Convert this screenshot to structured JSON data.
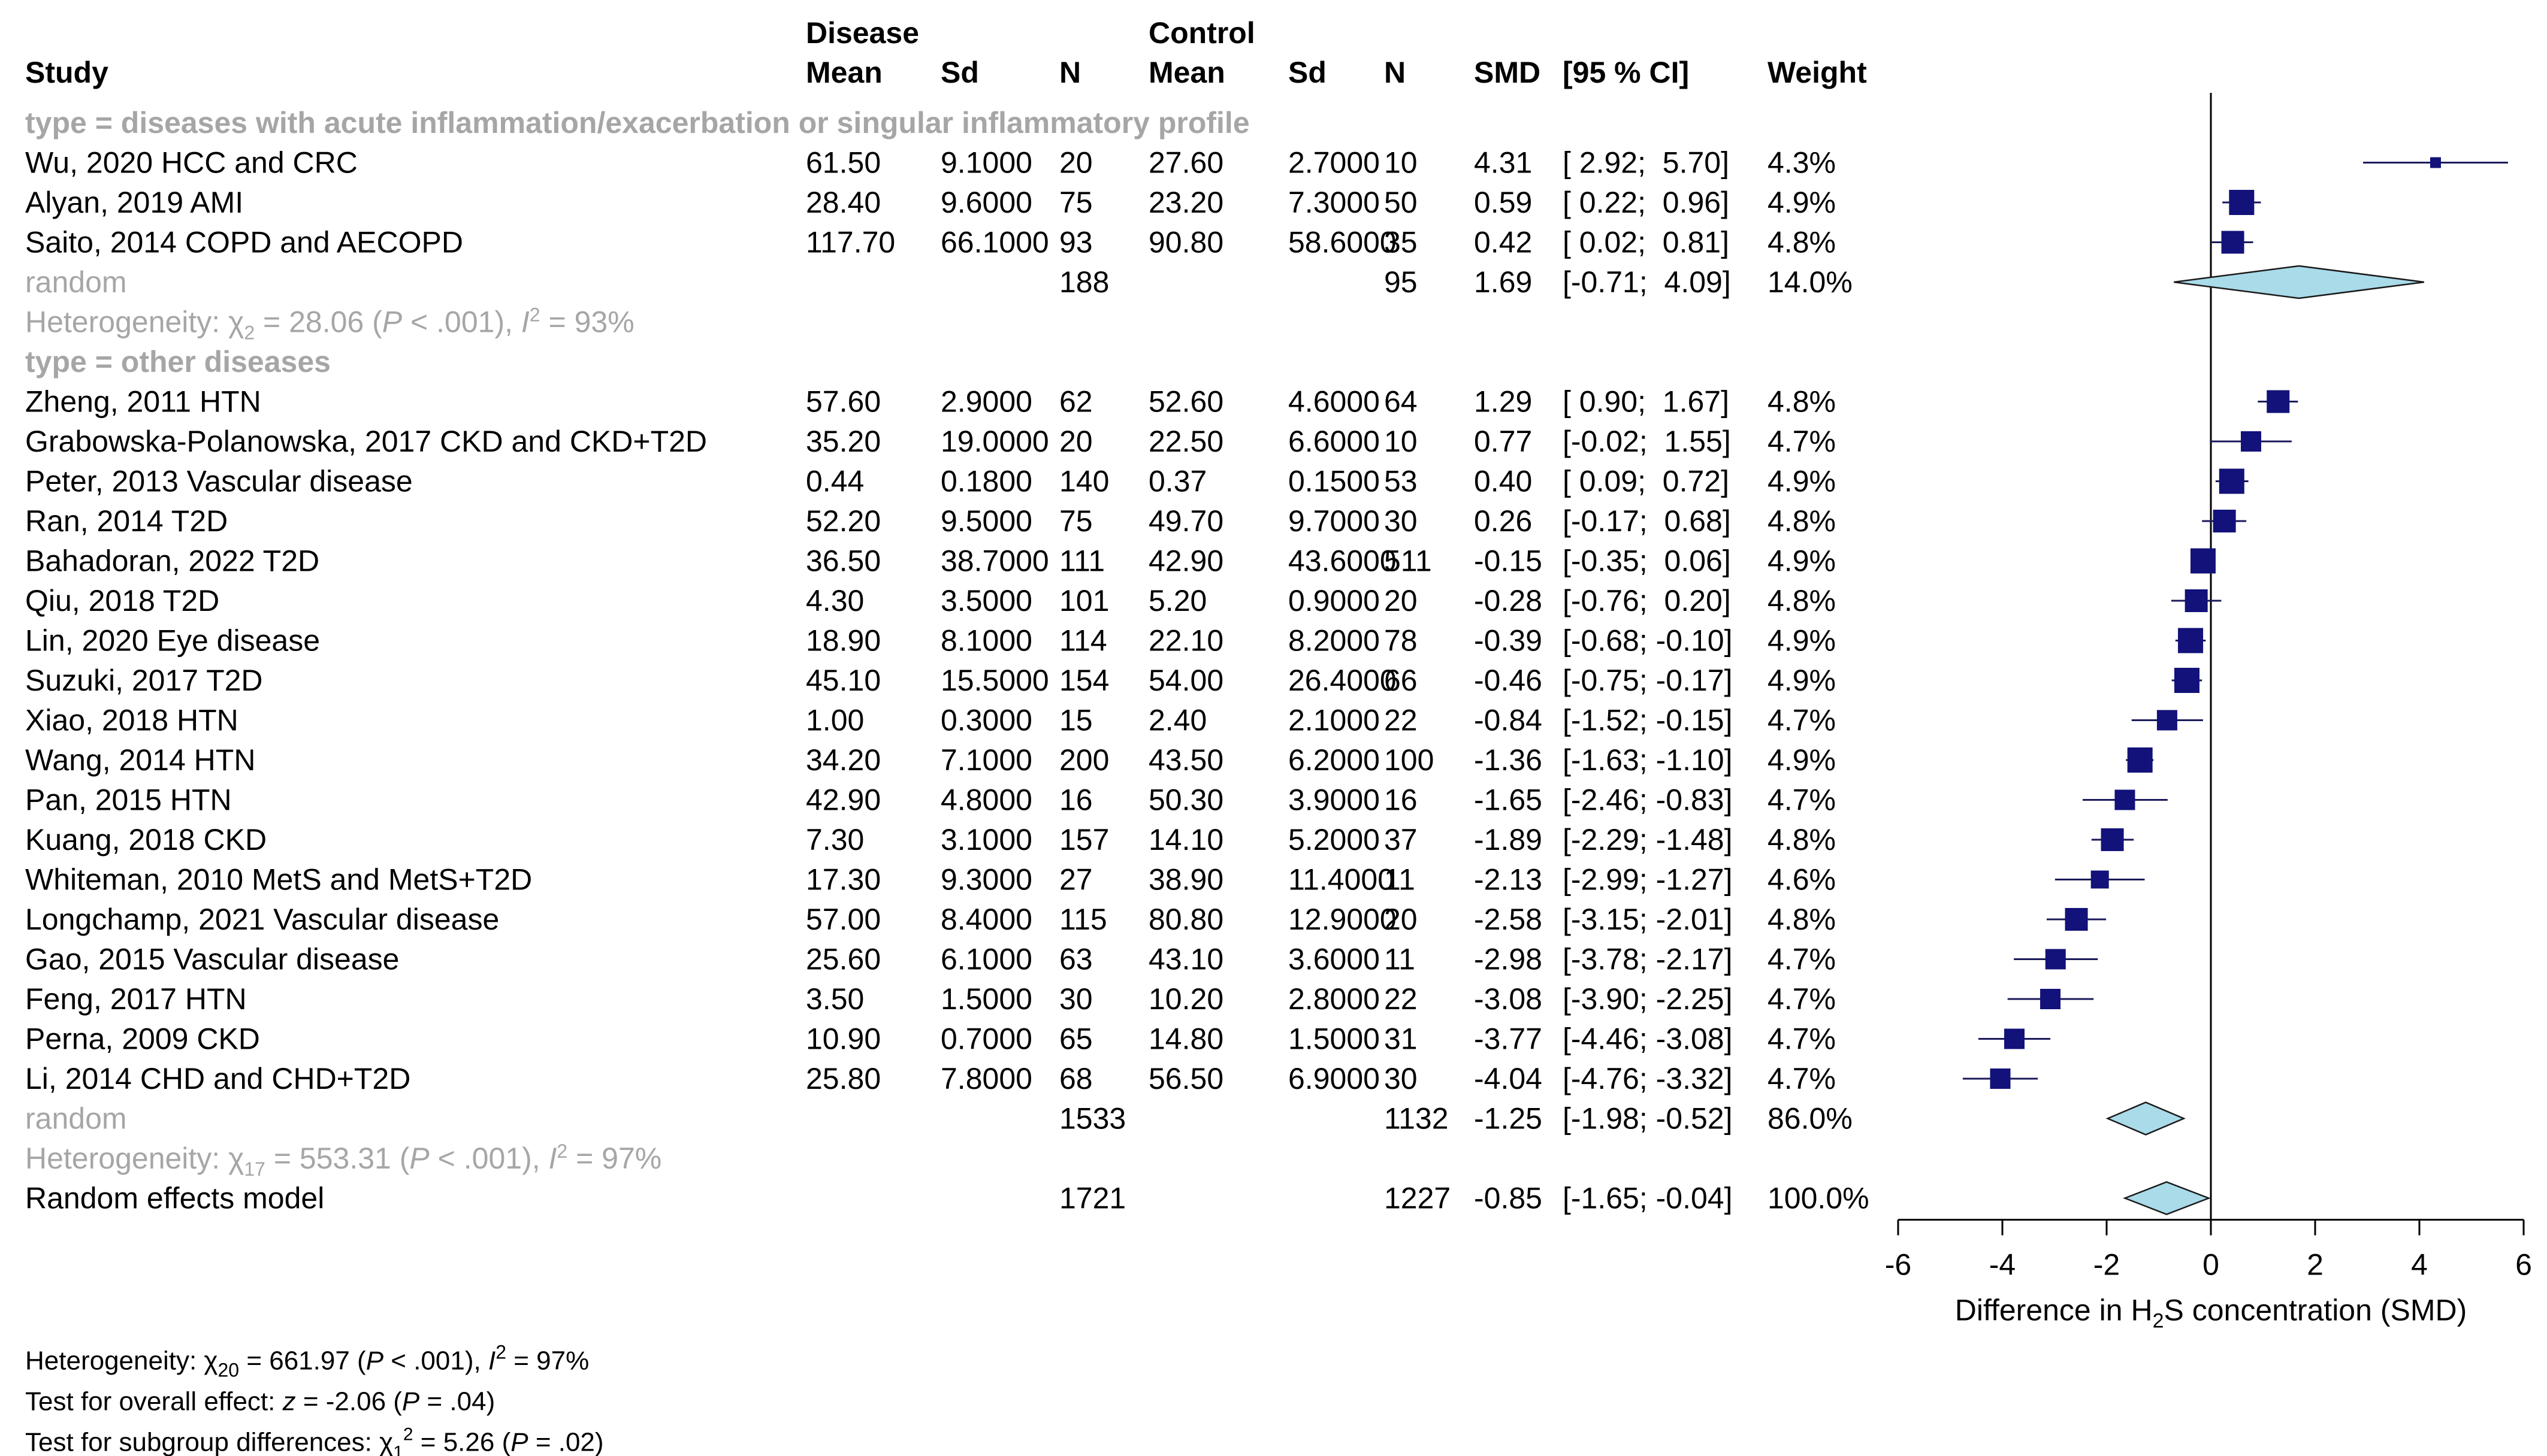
{
  "chart_data": {
    "type": "forest",
    "title": "",
    "xlabel_pre": "Difference in H",
    "xlabel_sub": "2",
    "xlabel_post": "S concentration (SMD)",
    "xlim": [
      -6,
      6
    ],
    "xticks": [
      -6,
      -4,
      -2,
      0,
      2,
      4,
      6
    ],
    "tick_labels": [
      "-6",
      "-4",
      "-2",
      "0",
      "2",
      "4",
      "6"
    ],
    "colors": {
      "marker": "#12127a",
      "diamond": "#a9dbe9",
      "grey": "#a6a6a6",
      "axis": "#000000"
    },
    "headers": {
      "disease_group": "Disease",
      "control_group": "Control",
      "study": "Study",
      "mean": "Mean",
      "sd": "Sd",
      "n": "N",
      "smd": "SMD",
      "ci": "[95 % CI]",
      "weight": "Weight"
    },
    "subgroups": [
      {
        "title": "type = diseases with acute inflammation/exacerbation or singular inflammatory profile",
        "studies": [
          {
            "study": "Wu, 2020  HCC and CRC",
            "d_mean": "61.50",
            "d_sd": "9.1000",
            "d_n": "20",
            "c_mean": "27.60",
            "c_sd": "2.7000",
            "c_n": "10",
            "smd_text": "4.31",
            "ci_text": "[ 2.92;  5.70]",
            "weight_text": "4.3%",
            "smd": 4.31,
            "lo": 2.92,
            "hi": 5.7,
            "weight": 4.3
          },
          {
            "study": "Alyan, 2019 AMI",
            "d_mean": "28.40",
            "d_sd": "9.6000",
            "d_n": "75",
            "c_mean": "23.20",
            "c_sd": "7.3000",
            "c_n": "50",
            "smd_text": "0.59",
            "ci_text": "[ 0.22;  0.96]",
            "weight_text": "4.9%",
            "smd": 0.59,
            "lo": 0.22,
            "hi": 0.96,
            "weight": 4.9
          },
          {
            "study": "Saito, 2014  COPD and AECOPD",
            "d_mean": "117.70",
            "d_sd": "66.1000",
            "d_n": "93",
            "c_mean": "90.80",
            "c_sd": "58.6000",
            "c_n": "35",
            "smd_text": "0.42",
            "ci_text": "[ 0.02;  0.81]",
            "weight_text": "4.8%",
            "smd": 0.42,
            "lo": 0.02,
            "hi": 0.81,
            "weight": 4.8
          }
        ],
        "pooled": {
          "label": "random",
          "d_n": "188",
          "c_n": "95",
          "smd_text": "1.69",
          "ci_text": "[-0.71;  4.09]",
          "weight_text": "14.0%",
          "smd": 1.69,
          "lo": -0.71,
          "hi": 4.09
        },
        "het": {
          "pre": "Heterogeneity: χ",
          "sub": "2",
          "mid": " = 28.06 (",
          "p": "P",
          "pval": " < .001), ",
          "i": "I",
          "isup": "2",
          "post": " = 93%"
        }
      },
      {
        "title": "type = other diseases",
        "studies": [
          {
            "study": "Zheng, 2011 HTN",
            "d_mean": "57.60",
            "d_sd": "2.9000",
            "d_n": "62",
            "c_mean": "52.60",
            "c_sd": "4.6000",
            "c_n": "64",
            "smd_text": "1.29",
            "ci_text": "[ 0.90;  1.67]",
            "weight_text": "4.8%",
            "smd": 1.29,
            "lo": 0.9,
            "hi": 1.67,
            "weight": 4.8
          },
          {
            "study": "Grabowska-Polanowska, 2017  CKD and CKD+T2D",
            "d_mean": "35.20",
            "d_sd": "19.0000",
            "d_n": "20",
            "c_mean": "22.50",
            "c_sd": "6.6000",
            "c_n": "10",
            "smd_text": "0.77",
            "ci_text": "[-0.02;  1.55]",
            "weight_text": "4.7%",
            "smd": 0.77,
            "lo": -0.02,
            "hi": 1.55,
            "weight": 4.7
          },
          {
            "study": "Peter, 2013   Vascular disease",
            "d_mean": "0.44",
            "d_sd": "0.1800",
            "d_n": "140",
            "c_mean": "0.37",
            "c_sd": "0.1500",
            "c_n": "53",
            "smd_text": "0.40",
            "ci_text": "[ 0.09;  0.72]",
            "weight_text": "4.9%",
            "smd": 0.4,
            "lo": 0.09,
            "hi": 0.72,
            "weight": 4.9
          },
          {
            "study": "Ran, 2014  T2D",
            "d_mean": "52.20",
            "d_sd": "9.5000",
            "d_n": "75",
            "c_mean": "49.70",
            "c_sd": "9.7000",
            "c_n": "30",
            "smd_text": "0.26",
            "ci_text": "[-0.17;  0.68]",
            "weight_text": "4.8%",
            "smd": 0.26,
            "lo": -0.17,
            "hi": 0.68,
            "weight": 4.8
          },
          {
            "study": "Bahadoran, 2022 T2D",
            "d_mean": "36.50",
            "d_sd": "38.7000",
            "d_n": "111",
            "c_mean": "42.90",
            "c_sd": "43.6000",
            "c_n": "511",
            "smd_text": "-0.15",
            "ci_text": "[-0.35;  0.06]",
            "weight_text": "4.9%",
            "smd": -0.15,
            "lo": -0.35,
            "hi": 0.06,
            "weight": 4.9
          },
          {
            "study": "Qiu, 2018 T2D",
            "d_mean": "4.30",
            "d_sd": "3.5000",
            "d_n": "101",
            "c_mean": "5.20",
            "c_sd": "0.9000",
            "c_n": "20",
            "smd_text": "-0.28",
            "ci_text": "[-0.76;  0.20]",
            "weight_text": "4.8%",
            "smd": -0.28,
            "lo": -0.76,
            "hi": 0.2,
            "weight": 4.8
          },
          {
            "study": "Lin, 2020 Eye disease",
            "d_mean": "18.90",
            "d_sd": "8.1000",
            "d_n": "114",
            "c_mean": "22.10",
            "c_sd": "8.2000",
            "c_n": "78",
            "smd_text": "-0.39",
            "ci_text": "[-0.68; -0.10]",
            "weight_text": "4.9%",
            "smd": -0.39,
            "lo": -0.68,
            "hi": -0.1,
            "weight": 4.9
          },
          {
            "study": "Suzuki, 2017 T2D",
            "d_mean": "45.10",
            "d_sd": "15.5000",
            "d_n": "154",
            "c_mean": "54.00",
            "c_sd": "26.4000",
            "c_n": "66",
            "smd_text": "-0.46",
            "ci_text": "[-0.75; -0.17]",
            "weight_text": "4.9%",
            "smd": -0.46,
            "lo": -0.75,
            "hi": -0.17,
            "weight": 4.9
          },
          {
            "study": "Xiao, 2018 HTN",
            "d_mean": "1.00",
            "d_sd": "0.3000",
            "d_n": "15",
            "c_mean": "2.40",
            "c_sd": "2.1000",
            "c_n": "22",
            "smd_text": "-0.84",
            "ci_text": "[-1.52; -0.15]",
            "weight_text": "4.7%",
            "smd": -0.84,
            "lo": -1.52,
            "hi": -0.15,
            "weight": 4.7
          },
          {
            "study": "Wang, 2014  HTN",
            "d_mean": "34.20",
            "d_sd": "7.1000",
            "d_n": "200",
            "c_mean": "43.50",
            "c_sd": "6.2000",
            "c_n": "100",
            "smd_text": "-1.36",
            "ci_text": "[-1.63; -1.10]",
            "weight_text": "4.9%",
            "smd": -1.36,
            "lo": -1.63,
            "hi": -1.1,
            "weight": 4.9
          },
          {
            "study": "Pan, 2015  HTN",
            "d_mean": "42.90",
            "d_sd": "4.8000",
            "d_n": "16",
            "c_mean": "50.30",
            "c_sd": "3.9000",
            "c_n": "16",
            "smd_text": "-1.65",
            "ci_text": "[-2.46; -0.83]",
            "weight_text": "4.7%",
            "smd": -1.65,
            "lo": -2.46,
            "hi": -0.83,
            "weight": 4.7
          },
          {
            "study": "Kuang, 2018 CKD",
            "d_mean": "7.30",
            "d_sd": "3.1000",
            "d_n": "157",
            "c_mean": "14.10",
            "c_sd": "5.2000",
            "c_n": "37",
            "smd_text": "-1.89",
            "ci_text": "[-2.29; -1.48]",
            "weight_text": "4.8%",
            "smd": -1.89,
            "lo": -2.29,
            "hi": -1.48,
            "weight": 4.8
          },
          {
            "study": "Whiteman, 2010 MetS and MetS+T2D",
            "d_mean": "17.30",
            "d_sd": "9.3000",
            "d_n": "27",
            "c_mean": "38.90",
            "c_sd": "11.4000",
            "c_n": "11",
            "smd_text": "-2.13",
            "ci_text": "[-2.99; -1.27]",
            "weight_text": "4.6%",
            "smd": -2.13,
            "lo": -2.99,
            "hi": -1.27,
            "weight": 4.6
          },
          {
            "study": "Longchamp, 2021  Vascular disease",
            "d_mean": "57.00",
            "d_sd": "8.4000",
            "d_n": "115",
            "c_mean": "80.80",
            "c_sd": "12.9000",
            "c_n": "20",
            "smd_text": "-2.58",
            "ci_text": "[-3.15; -2.01]",
            "weight_text": "4.8%",
            "smd": -2.58,
            "lo": -3.15,
            "hi": -2.01,
            "weight": 4.8
          },
          {
            "study": "Gao, 2015 Vascular disease",
            "d_mean": "25.60",
            "d_sd": "6.1000",
            "d_n": "63",
            "c_mean": "43.10",
            "c_sd": "3.6000",
            "c_n": "11",
            "smd_text": "-2.98",
            "ci_text": "[-3.78; -2.17]",
            "weight_text": "4.7%",
            "smd": -2.98,
            "lo": -3.78,
            "hi": -2.17,
            "weight": 4.7
          },
          {
            "study": "Feng, 2017 HTN",
            "d_mean": "3.50",
            "d_sd": "1.5000",
            "d_n": "30",
            "c_mean": "10.20",
            "c_sd": "2.8000",
            "c_n": "22",
            "smd_text": "-3.08",
            "ci_text": "[-3.90; -2.25]",
            "weight_text": "4.7%",
            "smd": -3.08,
            "lo": -3.9,
            "hi": -2.25,
            "weight": 4.7
          },
          {
            "study": "Perna, 2009  CKD",
            "d_mean": "10.90",
            "d_sd": "0.7000",
            "d_n": "65",
            "c_mean": "14.80",
            "c_sd": "1.5000",
            "c_n": "31",
            "smd_text": "-3.77",
            "ci_text": "[-4.46; -3.08]",
            "weight_text": "4.7%",
            "smd": -3.77,
            "lo": -4.46,
            "hi": -3.08,
            "weight": 4.7
          },
          {
            "study": "Li, 2014  CHD and CHD+T2D",
            "d_mean": "25.80",
            "d_sd": "7.8000",
            "d_n": "68",
            "c_mean": "56.50",
            "c_sd": "6.9000",
            "c_n": "30",
            "smd_text": "-4.04",
            "ci_text": "[-4.76; -3.32]",
            "weight_text": "4.7%",
            "smd": -4.04,
            "lo": -4.76,
            "hi": -3.32,
            "weight": 4.7
          }
        ],
        "pooled": {
          "label": "random",
          "d_n": "1533",
          "c_n": "1132",
          "smd_text": "-1.25",
          "ci_text": "[-1.98; -0.52]",
          "weight_text": "86.0%",
          "smd": -1.25,
          "lo": -1.98,
          "hi": -0.52
        },
        "het": {
          "pre": "Heterogeneity: χ",
          "sub": "17",
          "mid": " = 553.31 (",
          "p": "P",
          "pval": " < .001), ",
          "i": "I",
          "isup": "2",
          "post": " = 97%"
        }
      }
    ],
    "overall": {
      "label": "Random effects model",
      "d_n": "1721",
      "c_n": "1227",
      "smd_text": "-0.85",
      "ci_text": "[-1.65; -0.04]",
      "weight_text": "100.0%",
      "smd": -0.85,
      "lo": -1.65,
      "hi": -0.04
    },
    "footer": {
      "het": {
        "pre": "Heterogeneity: χ",
        "sub": "20",
        "mid": " = 661.97 (",
        "p": "P",
        "pval": " < .001), ",
        "i": "I",
        "isup": "2",
        "post": " = 97%"
      },
      "effect": {
        "pre": "Test for overall effect: ",
        "z": "z",
        "mid": " = -2.06 (",
        "p": "P",
        "post": " = .04)"
      },
      "subgroup": {
        "pre": "Test for subgroup differences: χ",
        "sub": "1",
        "sup": "2",
        "mid": " = 5.26 (",
        "p": "P",
        "post": " = .02)"
      }
    }
  }
}
